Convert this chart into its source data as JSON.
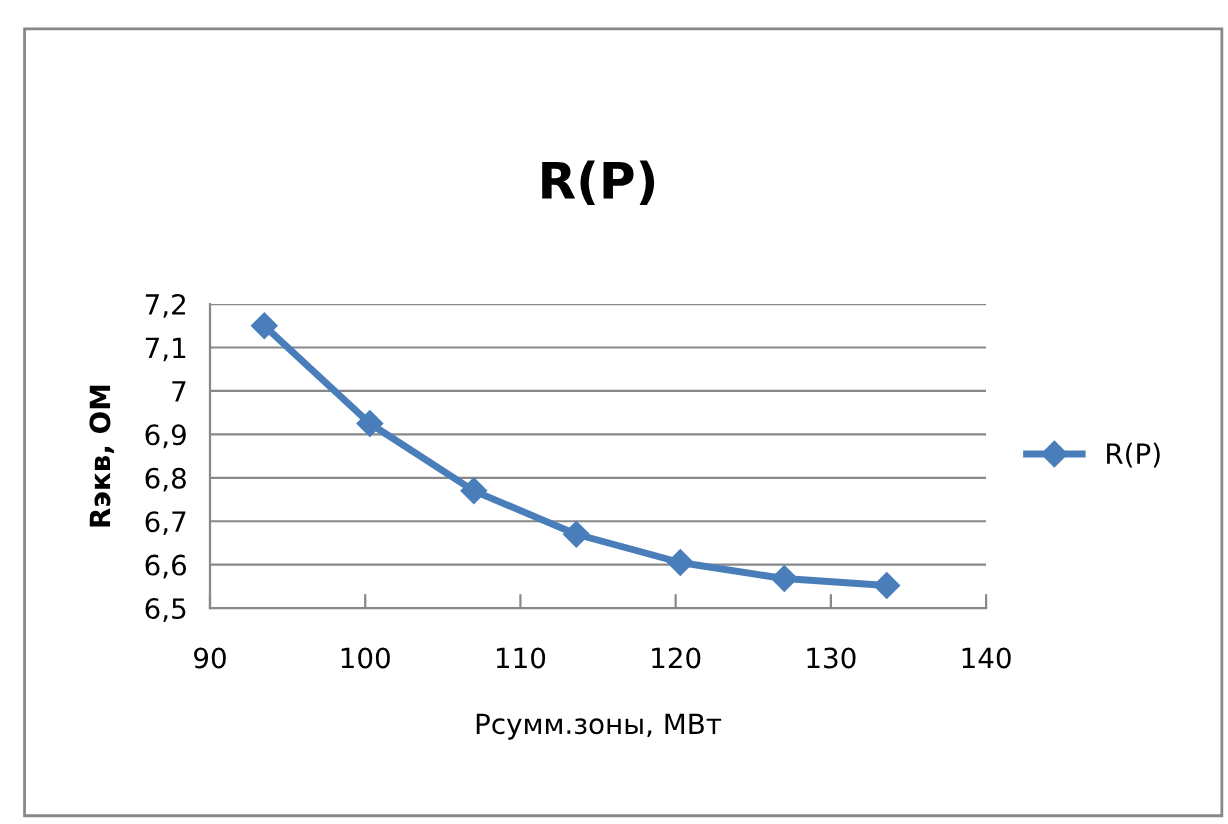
{
  "chart_data": {
    "type": "line",
    "title": "R(P)",
    "xlabel": "Pсумм.зоны, МВт",
    "ylabel": "Rэкв, ОМ",
    "series": [
      {
        "name": "R(P)",
        "color": "#4a7ebb",
        "x": [
          93.5,
          100.3,
          107.0,
          113.6,
          120.3,
          127.0,
          133.6
        ],
        "values": [
          7.15,
          6.925,
          6.77,
          6.67,
          6.605,
          6.568,
          6.552
        ]
      }
    ],
    "xlim": [
      90,
      140
    ],
    "xticks": [
      90,
      100,
      110,
      120,
      130,
      140
    ],
    "ylim": [
      6.5,
      7.2
    ],
    "yticks": [
      {
        "value": 6.5,
        "label": "6,5"
      },
      {
        "value": 6.6,
        "label": "6,6"
      },
      {
        "value": 6.7,
        "label": "6,7"
      },
      {
        "value": 6.8,
        "label": "6,8"
      },
      {
        "value": 6.9,
        "label": "6,9"
      },
      {
        "value": 7.0,
        "label": "7"
      },
      {
        "value": 7.1,
        "label": "7,1"
      },
      {
        "value": 7.2,
        "label": "7,2"
      }
    ],
    "grid": "y",
    "legend": "right",
    "marker": "diamond",
    "line_style": "solid"
  }
}
